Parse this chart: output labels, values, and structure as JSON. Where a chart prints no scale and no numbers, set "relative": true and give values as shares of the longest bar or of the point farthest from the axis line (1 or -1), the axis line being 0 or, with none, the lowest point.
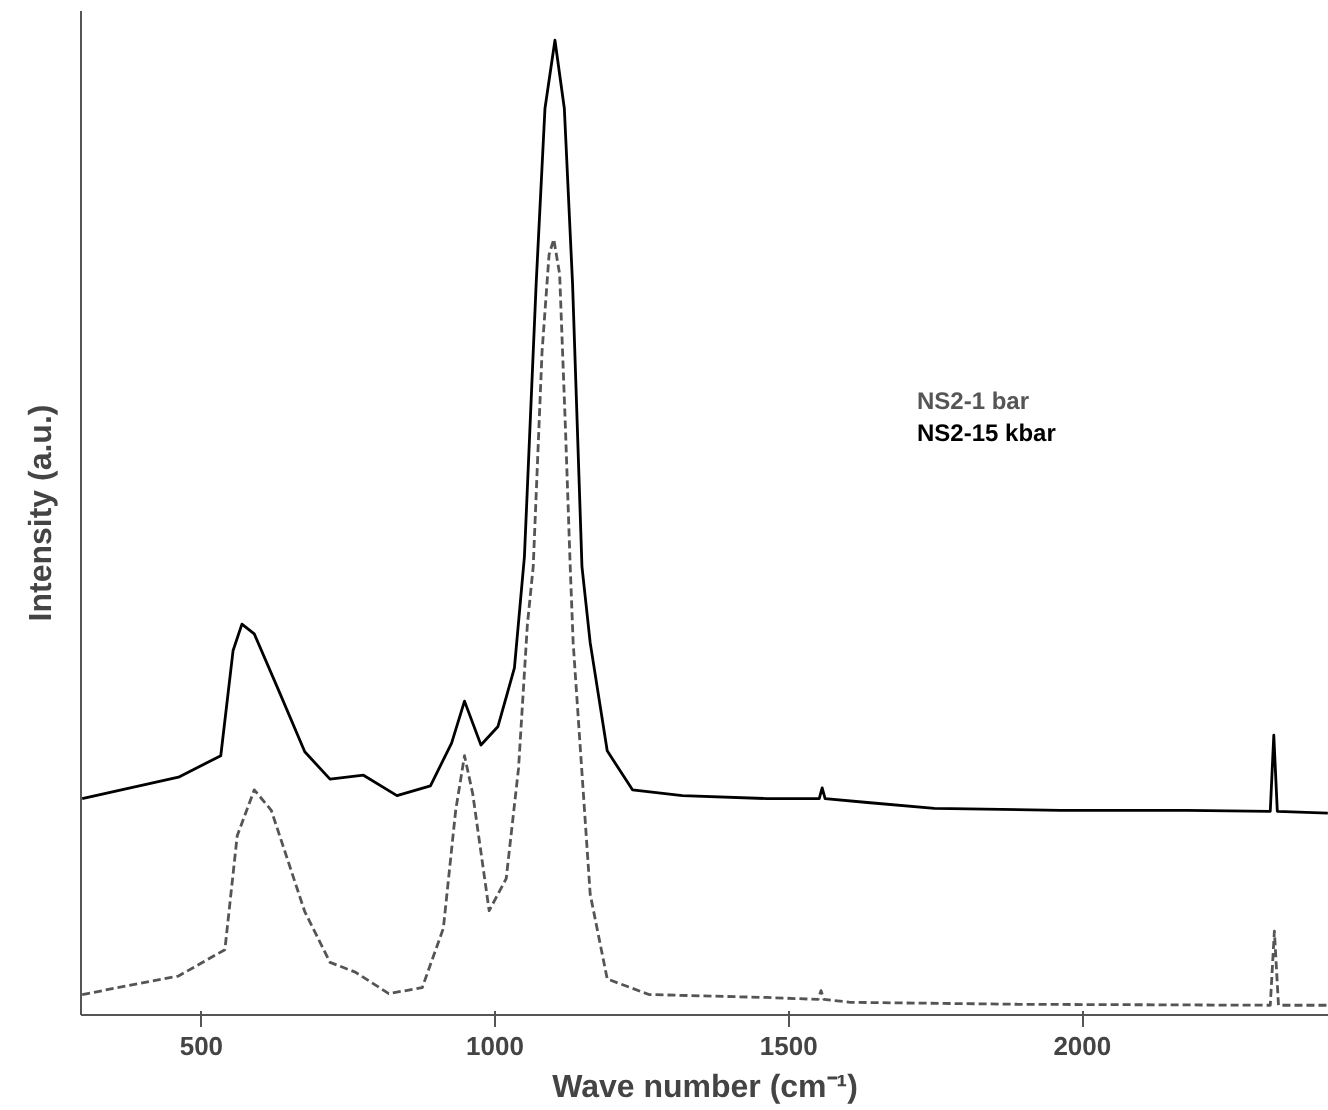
{
  "chart_data": {
    "type": "line",
    "relative": true,
    "xlabel": "Wave number (cm⁻¹)",
    "ylabel": "Intensity (a.u.)",
    "xlim": [
      295,
      2420
    ],
    "xticks": [
      500,
      1000,
      1500,
      2000
    ],
    "grid": false,
    "marker": "none",
    "series": [
      {
        "name": "NS2-1 bar",
        "color": "#555555",
        "line_style": "dashed",
        "x": [
          297,
          461,
          540,
          561,
          590,
          619,
          676,
          719,
          762,
          819,
          876,
          912,
          933,
          948,
          962,
          990,
          1019,
          1040,
          1055,
          1065,
          1080,
          1092,
          1100,
          1110,
          1120,
          1128,
          1133,
          1162,
          1191,
          1262,
          1462,
          1550,
          1555,
          1560,
          1605,
          1891,
          2320,
          2327,
          2334,
          2418
        ],
        "values": [
          0.021,
          0.04,
          0.067,
          0.184,
          0.231,
          0.21,
          0.106,
          0.054,
          0.044,
          0.022,
          0.028,
          0.089,
          0.21,
          0.266,
          0.227,
          0.107,
          0.14,
          0.253,
          0.4,
          0.46,
          0.68,
          0.78,
          0.796,
          0.76,
          0.6,
          0.46,
          0.382,
          0.124,
          0.037,
          0.021,
          0.018,
          0.016,
          0.025,
          0.016,
          0.013,
          0.011,
          0.01,
          0.086,
          0.01,
          0.01
        ]
      },
      {
        "name": "NS2-15 kbar",
        "color": "#000000",
        "line_style": "solid",
        "x": [
          297,
          461,
          533,
          554,
          569,
          590,
          633,
          676,
          719,
          776,
          833,
          890,
          926,
          948,
          976,
          1005,
          1033,
          1050,
          1070,
          1085,
          1102,
          1118,
          1132,
          1148,
          1162,
          1191,
          1234,
          1319,
          1462,
          1552,
          1557,
          1562,
          1634,
          1748,
          1963,
          2178,
          2320,
          2326,
          2332,
          2418
        ],
        "values": [
          0.222,
          0.244,
          0.266,
          0.374,
          0.401,
          0.391,
          0.331,
          0.27,
          0.242,
          0.246,
          0.225,
          0.235,
          0.279,
          0.322,
          0.277,
          0.296,
          0.356,
          0.47,
          0.75,
          0.93,
          1.0,
          0.93,
          0.75,
          0.46,
          0.382,
          0.271,
          0.231,
          0.225,
          0.222,
          0.222,
          0.233,
          0.222,
          0.218,
          0.212,
          0.21,
          0.21,
          0.209,
          0.287,
          0.209,
          0.207
        ]
      }
    ]
  }
}
